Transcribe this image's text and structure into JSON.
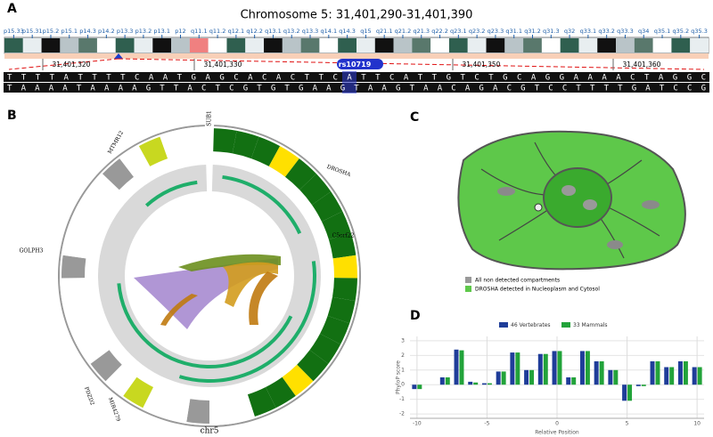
{
  "panels": {
    "A": "A",
    "B": "B",
    "C": "C",
    "D": "D"
  },
  "ideogram": {
    "title": "Chromosome 5: 31,401,290-31,401,390",
    "bands": [
      "p15.33",
      "p15.31",
      "p15.2",
      "p15.1",
      "p14.3",
      "p14.2",
      "p13.3",
      "p13.2",
      "p13.1",
      "p12",
      "q11.1",
      "q11.2",
      "q12.1",
      "q12.2",
      "q13.1",
      "q13.2",
      "q13.3",
      "q14.1",
      "q14.3",
      "q15",
      "q21.1",
      "q21.2",
      "q21.3",
      "q22.2",
      "q23.1",
      "q23.2",
      "q23.3",
      "q31.1",
      "q31.2",
      "q31.3",
      "q32",
      "q33.1",
      "q33.2",
      "q33.3",
      "q34",
      "q35.1",
      "q35.2",
      "q35.3"
    ],
    "positions": [
      "31,401,320",
      "31,401,330",
      "31,401,350",
      "31,401,360"
    ],
    "snp": "rs10719",
    "forward": "TTTTATTTTCAATGAGCACACTTCATTCATTGTCTGCAGGAAAACTAGGC",
    "reverse": "TAAAATAAAAGTTACTCGTGTGAAGTAAGTAACAGACGTCCTTTTGATCCG"
  },
  "circos": {
    "chromosome": "chr5",
    "genes": [
      "SUB1",
      "MTMR12",
      "DROSHA",
      "C5orf22",
      "GOLPH3",
      "PDZD2",
      "MIR4279"
    ]
  },
  "cell": {
    "legend": [
      "All non detected compartments",
      "DROSHA detected in Nucleoplasm and Cytosol"
    ]
  },
  "chart_data": {
    "type": "bar",
    "ylabel": "PhyloP score",
    "xlabel": "Relative Position",
    "x": [
      -10,
      -9,
      -8,
      -7,
      -6,
      -5,
      -4,
      -3,
      -2,
      -1,
      0,
      1,
      2,
      3,
      4,
      5,
      6,
      7,
      8,
      9,
      10
    ],
    "series": [
      {
        "name": "46 Vertebrates",
        "color": "#1f3d99",
        "values": [
          -0.3,
          0,
          0.5,
          2.4,
          0.2,
          0.1,
          0.9,
          2.2,
          1.0,
          2.1,
          2.3,
          0.5,
          2.3,
          1.6,
          1.0,
          -1.1,
          -0.1,
          1.6,
          1.2,
          1.6,
          1.2
        ]
      },
      {
        "name": "33 Mammals",
        "color": "#22a33a",
        "values": [
          -0.3,
          0,
          0.5,
          2.35,
          0.15,
          0.1,
          0.9,
          2.2,
          1.0,
          2.1,
          2.3,
          0.5,
          2.3,
          1.6,
          1.0,
          -1.1,
          -0.1,
          1.6,
          1.2,
          1.6,
          1.2
        ]
      }
    ],
    "xlim": [
      -10.5,
      10.5
    ],
    "xticks": [
      -10,
      -5,
      0,
      5,
      10
    ],
    "ylim": [
      -2.3,
      3.3
    ],
    "yticks": [
      -2,
      -1,
      0,
      1,
      2,
      3
    ],
    "grid": true
  }
}
